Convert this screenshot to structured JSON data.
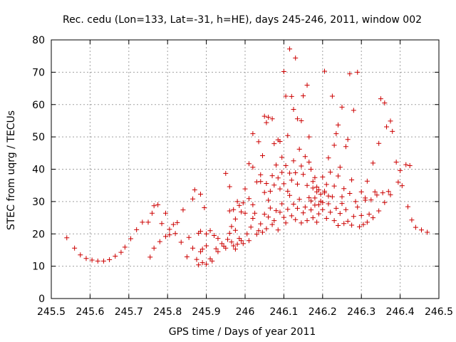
{
  "chart_data": {
    "type": "scatter",
    "title": "Rec. cedu (Lon=133, Lat=-31, h=HE), days 245-246, 2011, window 002",
    "xlabel": "GPS time / Days of year 2011",
    "ylabel": "STEC from uqrg / TECUs",
    "xlim": [
      245.5,
      246.5
    ],
    "ylim": [
      0,
      80
    ],
    "xticks": [
      "245.5",
      "245.6",
      "245.7",
      "245.8",
      "245.9",
      "246",
      "246.1",
      "246.2",
      "246.3",
      "246.4",
      "246.5"
    ],
    "yticks": [
      "0",
      "10",
      "20",
      "30",
      "40",
      "50",
      "60",
      "70",
      "80"
    ],
    "grid": true,
    "marker": "+",
    "color": "#cc0000",
    "points": [
      [
        245.54,
        18.8
      ],
      [
        245.56,
        15.6
      ],
      [
        245.575,
        13.5
      ],
      [
        245.59,
        12.4
      ],
      [
        245.605,
        11.9
      ],
      [
        245.62,
        11.6
      ],
      [
        245.635,
        11.6
      ],
      [
        245.65,
        12.0
      ],
      [
        245.665,
        13.1
      ],
      [
        245.68,
        14.3
      ],
      [
        245.69,
        15.9
      ],
      [
        245.705,
        18.5
      ],
      [
        245.72,
        21.3
      ],
      [
        245.735,
        23.6
      ],
      [
        245.75,
        23.6
      ],
      [
        245.76,
        26.4
      ],
      [
        245.775,
        29.0
      ],
      [
        245.765,
        28.7
      ],
      [
        245.785,
        23.2
      ],
      [
        245.795,
        26.4
      ],
      [
        245.755,
        12.8
      ],
      [
        245.765,
        15.6
      ],
      [
        245.78,
        17.6
      ],
      [
        245.795,
        19.2
      ],
      [
        245.805,
        21.4
      ],
      [
        245.815,
        22.9
      ],
      [
        245.805,
        19.7
      ],
      [
        245.82,
        20.1
      ],
      [
        245.825,
        23.5
      ],
      [
        245.835,
        17.4
      ],
      [
        245.84,
        27.4
      ],
      [
        245.85,
        12.9
      ],
      [
        245.855,
        18.9
      ],
      [
        245.865,
        30.8
      ],
      [
        245.87,
        33.6
      ],
      [
        245.885,
        32.3
      ],
      [
        245.865,
        15.6
      ],
      [
        245.875,
        12.1
      ],
      [
        245.88,
        10.4
      ],
      [
        245.89,
        11.1
      ],
      [
        245.9,
        10.6
      ],
      [
        245.885,
        14.5
      ],
      [
        245.89,
        15.3
      ],
      [
        245.9,
        16.3
      ],
      [
        245.91,
        12.3
      ],
      [
        245.915,
        11.6
      ],
      [
        245.895,
        28.1
      ],
      [
        245.9,
        20.0
      ],
      [
        245.91,
        21.0
      ],
      [
        245.92,
        19.5
      ],
      [
        245.925,
        15.4
      ],
      [
        245.93,
        14.5
      ],
      [
        245.94,
        17.0
      ],
      [
        245.945,
        16.2
      ],
      [
        245.95,
        15.6
      ],
      [
        245.955,
        18.3
      ],
      [
        245.96,
        20.2
      ],
      [
        245.965,
        17.5
      ],
      [
        245.97,
        16.3
      ],
      [
        245.975,
        15.3
      ],
      [
        245.98,
        16.8
      ],
      [
        245.985,
        18.6
      ],
      [
        245.99,
        17.9
      ],
      [
        245.995,
        17.0
      ],
      [
        245.95,
        38.7
      ],
      [
        245.96,
        34.6
      ],
      [
        245.96,
        27.1
      ],
      [
        245.97,
        27.5
      ],
      [
        245.975,
        24.6
      ],
      [
        245.98,
        30.0
      ],
      [
        245.985,
        28.8
      ],
      [
        245.99,
        26.8
      ],
      [
        245.995,
        29.6
      ],
      [
        245.88,
        20.2
      ],
      [
        245.885,
        20.8
      ],
      [
        245.93,
        18.6
      ],
      [
        245.965,
        22.3
      ],
      [
        245.975,
        21.1
      ],
      [
        246.01,
        41.7
      ],
      [
        246.02,
        40.6
      ],
      [
        246.02,
        51.0
      ],
      [
        246.035,
        48.5
      ],
      [
        246.04,
        36.2
      ],
      [
        246.045,
        44.2
      ],
      [
        246.05,
        56.4
      ],
      [
        246.055,
        54.4
      ],
      [
        246.06,
        56.1
      ],
      [
        246.07,
        55.6
      ],
      [
        246.075,
        47.9
      ],
      [
        246.085,
        49.1
      ],
      [
        246.09,
        48.6
      ],
      [
        246.095,
        43.7
      ],
      [
        246.1,
        70.2
      ],
      [
        246.105,
        62.6
      ],
      [
        246.11,
        50.4
      ],
      [
        246.115,
        77.2
      ],
      [
        246.12,
        62.5
      ],
      [
        246.125,
        58.5
      ],
      [
        246.13,
        74.4
      ],
      [
        246.135,
        55.6
      ],
      [
        246.145,
        55.0
      ],
      [
        246.15,
        62.7
      ],
      [
        246.16,
        66.0
      ],
      [
        246.165,
        50.0
      ],
      [
        246.17,
        40.0
      ],
      [
        246.175,
        34.2
      ],
      [
        246.18,
        37.4
      ],
      [
        246.185,
        33.0
      ],
      [
        246.19,
        33.6
      ],
      [
        246.2,
        29.7
      ],
      [
        246.205,
        70.3
      ],
      [
        246.215,
        43.5
      ],
      [
        246.225,
        62.6
      ],
      [
        246.23,
        47.4
      ],
      [
        246.235,
        51.0
      ],
      [
        246.24,
        53.7
      ],
      [
        246.245,
        40.6
      ],
      [
        246.25,
        59.2
      ],
      [
        246.26,
        47.0
      ],
      [
        246.265,
        49.2
      ],
      [
        246.27,
        69.5
      ],
      [
        246.275,
        36.7
      ],
      [
        246.28,
        58.2
      ],
      [
        246.29,
        70.0
      ],
      [
        246.3,
        33.0
      ],
      [
        246.31,
        30.4
      ],
      [
        246.315,
        36.3
      ],
      [
        246.33,
        41.9
      ],
      [
        246.335,
        33.0
      ],
      [
        246.345,
        48.0
      ],
      [
        246.35,
        61.8
      ],
      [
        246.36,
        60.5
      ],
      [
        246.365,
        53.1
      ],
      [
        246.375,
        54.9
      ],
      [
        246.38,
        51.7
      ],
      [
        246.39,
        42.2
      ],
      [
        246.395,
        36.0
      ],
      [
        246.4,
        39.6
      ],
      [
        246.405,
        34.9
      ],
      [
        246.415,
        41.4
      ],
      [
        246.42,
        28.4
      ],
      [
        246.425,
        41.1
      ],
      [
        246.43,
        24.3
      ],
      [
        246.44,
        22.0
      ],
      [
        246.455,
        21.2
      ],
      [
        246.47,
        20.5
      ],
      [
        246.0,
        26.4
      ],
      [
        246.005,
        20.0
      ],
      [
        246.01,
        17.9
      ],
      [
        246.015,
        22.1
      ],
      [
        246.02,
        24.8
      ],
      [
        246.025,
        26.4
      ],
      [
        246.03,
        19.9
      ],
      [
        246.035,
        21.0
      ],
      [
        246.04,
        23.1
      ],
      [
        246.045,
        20.5
      ],
      [
        246.05,
        26.1
      ],
      [
        246.055,
        21.6
      ],
      [
        246.06,
        25.2
      ],
      [
        246.065,
        28.0
      ],
      [
        246.07,
        22.9
      ],
      [
        246.075,
        24.1
      ],
      [
        246.08,
        27.2
      ],
      [
        246.085,
        21.2
      ],
      [
        246.09,
        26.7
      ],
      [
        246.095,
        29.3
      ],
      [
        246.1,
        25.1
      ],
      [
        246.105,
        23.4
      ],
      [
        246.11,
        27.6
      ],
      [
        246.115,
        31.9
      ],
      [
        246.12,
        25.6
      ],
      [
        246.125,
        29.2
      ],
      [
        246.13,
        24.4
      ],
      [
        246.135,
        27.9
      ],
      [
        246.14,
        30.7
      ],
      [
        246.145,
        23.4
      ],
      [
        246.15,
        26.5
      ],
      [
        246.155,
        28.3
      ],
      [
        246.16,
        24.1
      ],
      [
        246.165,
        31.2
      ],
      [
        246.17,
        27.4
      ],
      [
        246.175,
        25.0
      ],
      [
        246.18,
        28.9
      ],
      [
        246.185,
        23.6
      ],
      [
        246.19,
        26.2
      ],
      [
        246.195,
        30.1
      ],
      [
        246.2,
        27.5
      ],
      [
        246.205,
        32.7
      ],
      [
        246.21,
        24.8
      ],
      [
        246.215,
        29.3
      ],
      [
        246.22,
        26.7
      ],
      [
        246.225,
        31.5
      ],
      [
        246.23,
        24.1
      ],
      [
        246.235,
        27.9
      ],
      [
        246.24,
        22.6
      ],
      [
        246.245,
        26.3
      ],
      [
        246.25,
        29.4
      ],
      [
        246.255,
        23.2
      ],
      [
        246.26,
        27.5
      ],
      [
        246.265,
        23.9
      ],
      [
        246.27,
        32.5
      ],
      [
        246.275,
        22.7
      ],
      [
        246.28,
        25.4
      ],
      [
        246.285,
        30.0
      ],
      [
        246.29,
        28.3
      ],
      [
        246.295,
        22.2
      ],
      [
        246.3,
        25.7
      ],
      [
        246.305,
        22.9
      ],
      [
        246.31,
        31.1
      ],
      [
        246.315,
        23.6
      ],
      [
        246.32,
        26.1
      ],
      [
        246.325,
        30.5
      ],
      [
        246.33,
        25.0
      ],
      [
        246.34,
        32.0
      ],
      [
        246.345,
        27.1
      ],
      [
        246.355,
        32.7
      ],
      [
        246.36,
        29.7
      ],
      [
        246.37,
        33.1
      ],
      [
        246.375,
        32.1
      ],
      [
        246.0,
        33.9
      ],
      [
        246.01,
        30.9
      ],
      [
        246.02,
        29.0
      ],
      [
        246.03,
        36.1
      ],
      [
        246.04,
        38.3
      ],
      [
        246.05,
        32.8
      ],
      [
        246.055,
        35.6
      ],
      [
        246.06,
        30.4
      ],
      [
        246.065,
        33.2
      ],
      [
        246.07,
        38.0
      ],
      [
        246.075,
        35.1
      ],
      [
        246.08,
        41.3
      ],
      [
        246.085,
        37.3
      ],
      [
        246.09,
        33.9
      ],
      [
        246.095,
        39.0
      ],
      [
        246.1,
        35.5
      ],
      [
        246.105,
        41.1
      ],
      [
        246.11,
        33.2
      ],
      [
        246.115,
        38.8
      ],
      [
        246.12,
        36.6
      ],
      [
        246.125,
        42.6
      ],
      [
        246.13,
        38.9
      ],
      [
        246.135,
        35.4
      ],
      [
        246.14,
        46.2
      ],
      [
        246.145,
        41.0
      ],
      [
        246.15,
        38.4
      ],
      [
        246.155,
        43.9
      ],
      [
        246.16,
        35.0
      ],
      [
        246.165,
        42.2
      ],
      [
        246.17,
        30.2
      ],
      [
        246.175,
        36.2
      ],
      [
        246.18,
        31.1
      ],
      [
        246.185,
        34.5
      ],
      [
        246.19,
        29.0
      ],
      [
        246.195,
        32.3
      ],
      [
        246.2,
        37.6
      ],
      [
        246.205,
        33.2
      ],
      [
        246.21,
        35.3
      ],
      [
        246.215,
        31.7
      ],
      [
        246.22,
        39.1
      ],
      [
        246.23,
        34.8
      ],
      [
        246.24,
        37.9
      ],
      [
        246.25,
        31.5
      ],
      [
        246.255,
        34.0
      ]
    ]
  }
}
